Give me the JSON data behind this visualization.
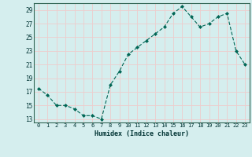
{
  "x": [
    0,
    1,
    2,
    3,
    4,
    5,
    6,
    7,
    8,
    9,
    10,
    11,
    12,
    13,
    14,
    15,
    16,
    17,
    18,
    19,
    20,
    21,
    22,
    23
  ],
  "y": [
    17.5,
    16.5,
    15.0,
    15.0,
    14.5,
    13.5,
    13.5,
    13.0,
    18.0,
    20.0,
    22.5,
    23.5,
    24.5,
    25.5,
    26.5,
    28.5,
    29.5,
    28.0,
    26.5,
    27.0,
    28.0,
    28.5,
    23.0,
    21.0
  ],
  "xlabel": "Humidex (Indice chaleur)",
  "xlim": [
    -0.5,
    23.5
  ],
  "ylim": [
    12.5,
    30.0
  ],
  "yticks": [
    13,
    15,
    17,
    19,
    21,
    23,
    25,
    27,
    29
  ],
  "xtick_labels": [
    "0",
    "1",
    "2",
    "3",
    "4",
    "5",
    "6",
    "7",
    "8",
    "9",
    "10",
    "11",
    "12",
    "13",
    "14",
    "15",
    "16",
    "17",
    "18",
    "19",
    "20",
    "21",
    "22",
    "23"
  ],
  "bg_color": "#d5eeee",
  "grid_color": "#eecccc",
  "line_color": "#006655",
  "marker_color": "#006655",
  "spine_color": "#336655",
  "tick_color": "#003333",
  "label_color": "#003333"
}
